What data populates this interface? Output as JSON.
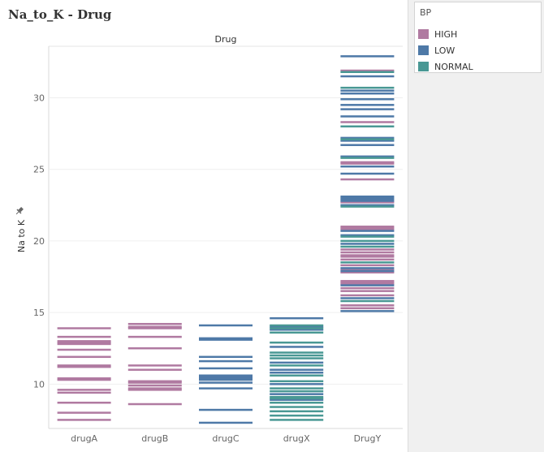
{
  "sheet": {
    "title": "Na_to_K - Drug"
  },
  "legend": {
    "title": "BP",
    "items": [
      {
        "label": "HIGH",
        "color": "#b07aa1"
      },
      {
        "label": "LOW",
        "color": "#4e79a7"
      },
      {
        "label": "NORMAL",
        "color": "#499894"
      }
    ]
  },
  "chart_data": {
    "type": "bar",
    "column_header": "Drug",
    "ylabel": "Na to K",
    "ylim": [
      6.9,
      33.6
    ],
    "yticks": [
      10,
      15,
      20,
      25,
      30
    ],
    "categories": [
      "drugA",
      "drugB",
      "drugC",
      "drugX",
      "DrugY"
    ],
    "grid": true,
    "legend_position": "top-right",
    "series": [
      {
        "name": "HIGH",
        "color": "#b07aa1",
        "points": [
          [
            "drugA",
            7.5
          ],
          [
            "drugA",
            8.0
          ],
          [
            "drugA",
            8.7
          ],
          [
            "drugA",
            9.4
          ],
          [
            "drugA",
            9.6
          ],
          [
            "drugA",
            10.3
          ],
          [
            "drugA",
            10.4
          ],
          [
            "drugA",
            11.2
          ],
          [
            "drugA",
            11.3
          ],
          [
            "drugA",
            11.9
          ],
          [
            "drugA",
            12.4
          ],
          [
            "drugA",
            12.8
          ],
          [
            "drugA",
            12.9
          ],
          [
            "drugA",
            13.0
          ],
          [
            "drugA",
            13.3
          ],
          [
            "drugA",
            13.9
          ],
          [
            "drugB",
            8.6
          ],
          [
            "drugB",
            9.6
          ],
          [
            "drugB",
            9.7
          ],
          [
            "drugB",
            9.9
          ],
          [
            "drugB",
            10.1
          ],
          [
            "drugB",
            10.2
          ],
          [
            "drugB",
            11.0
          ],
          [
            "drugB",
            11.3
          ],
          [
            "drugB",
            12.5
          ],
          [
            "drugB",
            13.3
          ],
          [
            "drugB",
            13.9
          ],
          [
            "drugB",
            14.0
          ],
          [
            "drugB",
            14.2
          ],
          [
            "DrugY",
            15.3
          ],
          [
            "DrugY",
            15.5
          ],
          [
            "DrugY",
            16.2
          ],
          [
            "DrugY",
            16.5
          ],
          [
            "DrugY",
            16.7
          ],
          [
            "DrugY",
            17.0
          ],
          [
            "DrugY",
            17.1
          ],
          [
            "DrugY",
            17.2
          ],
          [
            "DrugY",
            17.8
          ],
          [
            "DrugY",
            18.0
          ],
          [
            "DrugY",
            18.3
          ],
          [
            "DrugY",
            18.7
          ],
          [
            "DrugY",
            18.9
          ],
          [
            "DrugY",
            19.0
          ],
          [
            "DrugY",
            19.2
          ],
          [
            "DrugY",
            19.4
          ],
          [
            "DrugY",
            20.8
          ],
          [
            "DrugY",
            20.9
          ],
          [
            "DrugY",
            21.0
          ],
          [
            "DrugY",
            22.7
          ],
          [
            "DrugY",
            24.3
          ],
          [
            "DrugY",
            25.4
          ],
          [
            "DrugY",
            25.5
          ],
          [
            "DrugY",
            28.3
          ],
          [
            "DrugY",
            31.9
          ]
        ]
      },
      {
        "name": "LOW",
        "color": "#4e79a7",
        "points": [
          [
            "drugC",
            7.3
          ],
          [
            "drugC",
            8.2
          ],
          [
            "drugC",
            9.7
          ],
          [
            "drugC",
            10.1
          ],
          [
            "drugC",
            10.3
          ],
          [
            "drugC",
            10.4
          ],
          [
            "drugC",
            10.5
          ],
          [
            "drugC",
            10.6
          ],
          [
            "drugC",
            11.1
          ],
          [
            "drugC",
            11.6
          ],
          [
            "drugC",
            11.9
          ],
          [
            "drugC",
            13.1
          ],
          [
            "drugC",
            13.2
          ],
          [
            "drugC",
            14.1
          ],
          [
            "drugX",
            8.9
          ],
          [
            "drugX",
            9.3
          ],
          [
            "drugX",
            10.0
          ],
          [
            "drugX",
            10.8
          ],
          [
            "drugX",
            11.0
          ],
          [
            "drugX",
            11.5
          ],
          [
            "drugX",
            12.6
          ],
          [
            "drugX",
            13.8
          ],
          [
            "drugX",
            14.0
          ],
          [
            "drugX",
            14.6
          ],
          [
            "DrugY",
            15.1
          ],
          [
            "DrugY",
            16.0
          ],
          [
            "DrugY",
            16.9
          ],
          [
            "DrugY",
            17.9
          ],
          [
            "DrugY",
            18.1
          ],
          [
            "DrugY",
            19.8
          ],
          [
            "DrugY",
            20.4
          ],
          [
            "DrugY",
            20.7
          ],
          [
            "DrugY",
            22.5
          ],
          [
            "DrugY",
            22.8
          ],
          [
            "DrugY",
            22.9
          ],
          [
            "DrugY",
            23.0
          ],
          [
            "DrugY",
            23.1
          ],
          [
            "DrugY",
            24.7
          ],
          [
            "DrugY",
            25.2
          ],
          [
            "DrugY",
            25.9
          ],
          [
            "DrugY",
            26.7
          ],
          [
            "DrugY",
            27.0
          ],
          [
            "DrugY",
            27.2
          ],
          [
            "DrugY",
            28.7
          ],
          [
            "DrugY",
            29.2
          ],
          [
            "DrugY",
            29.5
          ],
          [
            "DrugY",
            29.9
          ],
          [
            "DrugY",
            30.3
          ],
          [
            "DrugY",
            30.5
          ],
          [
            "DrugY",
            31.5
          ],
          [
            "DrugY",
            32.9
          ]
        ]
      },
      {
        "name": "NORMAL",
        "color": "#499894",
        "points": [
          [
            "drugX",
            7.5
          ],
          [
            "drugX",
            7.8
          ],
          [
            "drugX",
            8.1
          ],
          [
            "drugX",
            8.4
          ],
          [
            "drugX",
            8.7
          ],
          [
            "drugX",
            9.0
          ],
          [
            "drugX",
            9.1
          ],
          [
            "drugX",
            9.5
          ],
          [
            "drugX",
            9.7
          ],
          [
            "drugX",
            10.2
          ],
          [
            "drugX",
            10.6
          ],
          [
            "drugX",
            11.3
          ],
          [
            "drugX",
            11.8
          ],
          [
            "drugX",
            12.0
          ],
          [
            "drugX",
            12.2
          ],
          [
            "drugX",
            12.9
          ],
          [
            "drugX",
            13.6
          ],
          [
            "drugX",
            13.9
          ],
          [
            "drugX",
            14.1
          ],
          [
            "DrugY",
            15.8
          ],
          [
            "DrugY",
            18.5
          ],
          [
            "DrugY",
            19.6
          ],
          [
            "DrugY",
            20.0
          ],
          [
            "DrugY",
            20.3
          ],
          [
            "DrugY",
            22.4
          ],
          [
            "DrugY",
            25.8
          ],
          [
            "DrugY",
            27.1
          ],
          [
            "DrugY",
            28.0
          ],
          [
            "DrugY",
            30.7
          ],
          [
            "DrugY",
            31.8
          ]
        ]
      }
    ]
  }
}
